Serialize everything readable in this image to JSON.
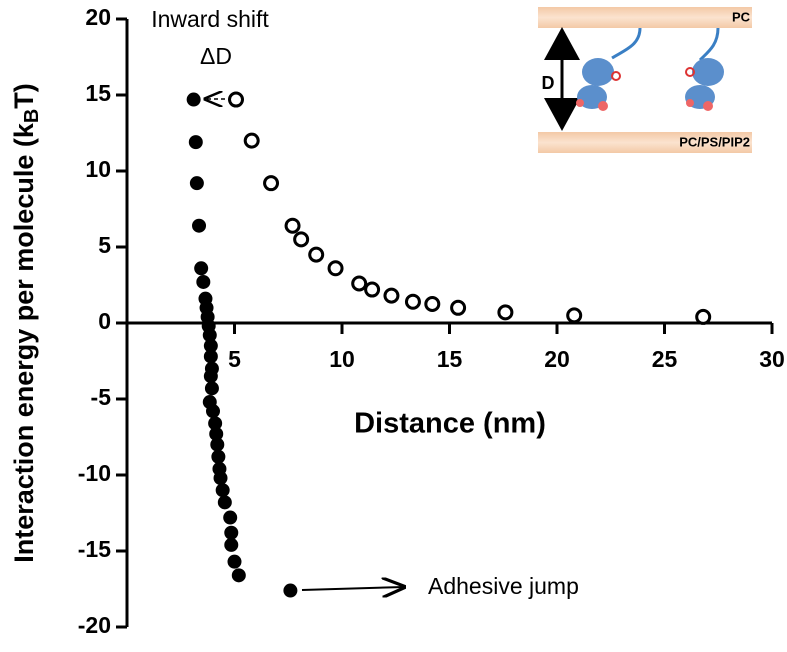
{
  "chart_data": {
    "type": "scatter",
    "xlabel": "Distance (nm)",
    "ylabel": [
      "Interaction energy per molecule (k",
      "B",
      "T)"
    ],
    "xlim": [
      0,
      30
    ],
    "xticks": [
      5,
      10,
      15,
      20,
      25,
      30
    ],
    "ylim": [
      -20,
      20
    ],
    "yticks": [
      -20,
      -15,
      -10,
      -5,
      0,
      5,
      10,
      15,
      20
    ],
    "annotations": {
      "shift": "Inward shift",
      "delta": "ΔD",
      "jump": "Adhesive jump"
    },
    "inset": {
      "top": "PC",
      "bottom": "PC/PS/PIP2",
      "gap": "D"
    },
    "series": [
      {
        "marker": "open",
        "color": "#000000",
        "x": [
          5.07,
          5.8,
          6.7,
          7.7,
          8.1,
          8.8,
          9.7,
          10.8,
          11.4,
          12.3,
          13.3,
          14.2,
          15.4,
          17.6,
          20.8,
          26.8
        ],
        "values": [
          14.7,
          12.0,
          9.2,
          6.4,
          5.5,
          4.5,
          3.6,
          2.6,
          2.2,
          1.8,
          1.4,
          1.25,
          1.0,
          0.7,
          0.5,
          0.4
        ]
      },
      {
        "marker": "filled",
        "color": "#000000",
        "x": [
          3.1,
          3.2,
          3.25,
          3.35,
          3.45,
          3.55,
          3.65,
          3.7,
          3.75,
          3.8,
          3.85,
          3.9,
          3.9,
          3.95,
          3.9,
          3.95,
          3.85,
          4.0,
          4.1,
          4.15,
          4.2,
          4.25,
          4.3,
          4.35,
          4.45,
          4.55,
          4.8,
          4.85,
          4.85,
          5.0,
          5.2,
          7.6
        ],
        "values": [
          14.7,
          11.9,
          9.2,
          6.4,
          3.6,
          2.7,
          1.6,
          1.0,
          0.4,
          -0.2,
          -0.8,
          -1.5,
          -2.2,
          -3.0,
          -3.5,
          -4.3,
          -5.2,
          -5.8,
          -6.6,
          -7.3,
          -8.0,
          -8.8,
          -9.6,
          -10.2,
          -11.0,
          -11.8,
          -12.8,
          -13.8,
          -14.6,
          -15.7,
          -16.6,
          -17.6
        ]
      }
    ]
  }
}
